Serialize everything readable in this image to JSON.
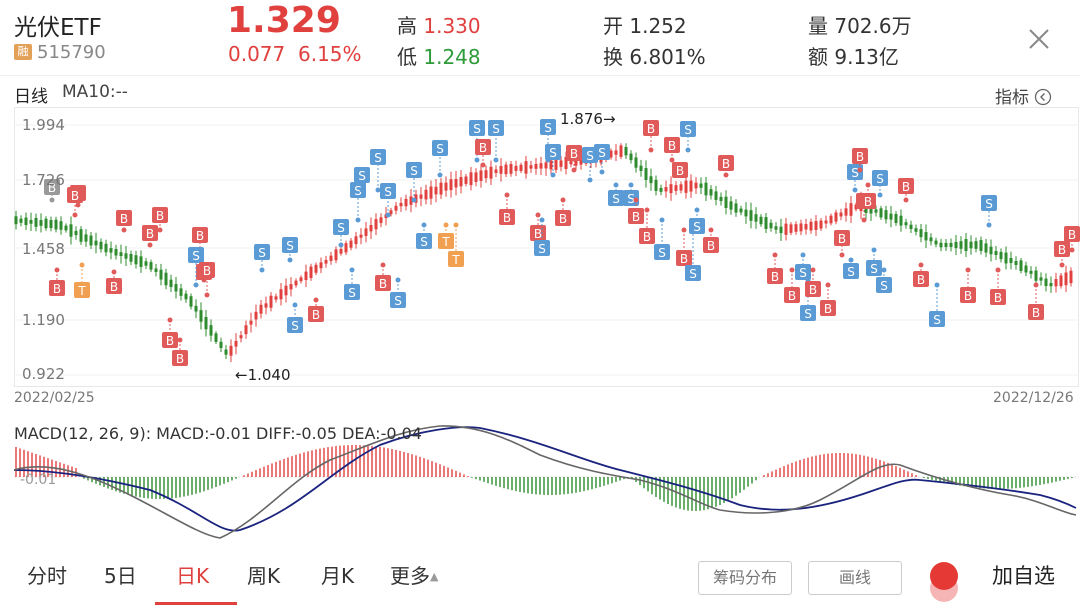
{
  "header": {
    "name": "光伏ETF",
    "badge": "融",
    "code": "515790",
    "price": "1.329",
    "change": "0.077",
    "change_pct": "6.15%",
    "high_label": "高",
    "high": "1.330",
    "low_label": "低",
    "low": "1.248",
    "open_label": "开",
    "open": "1.252",
    "turnover_label": "换",
    "turnover": "6.801%",
    "volume_label": "量",
    "volume": "702.6万",
    "amount_label": "额",
    "amount": "9.13亿"
  },
  "chart_header": {
    "period": "日线",
    "ma": "MA10:--",
    "indicator": "指标"
  },
  "chart_data": {
    "type": "candlestick",
    "y_ticks": [
      "1.994",
      "1.726",
      "1.458",
      "1.190",
      "0.922"
    ],
    "ylim": [
      0.922,
      1.994
    ],
    "start_date": "2022/02/25",
    "end_date": "2022/12/26",
    "high_annotation": "1.876→",
    "low_annotation": "←1.040",
    "macd_header": "MACD(12, 26, 9): MACD:-0.01 DIFF:-0.05 DEA:-0.04",
    "macd_axis_label": "-0.01",
    "colors": {
      "up": "#e0403e",
      "down": "#2e8b2e",
      "buy": "#e05a5a",
      "sell": "#5b9bd5",
      "t": "#f0a050",
      "dea": "#1a237e",
      "diff": "#666666"
    }
  },
  "tabs": [
    "分时",
    "5日",
    "日K",
    "周K",
    "月K",
    "更多"
  ],
  "buttons": {
    "chips": "筹码分布",
    "draw": "画线",
    "add": "加自选"
  }
}
